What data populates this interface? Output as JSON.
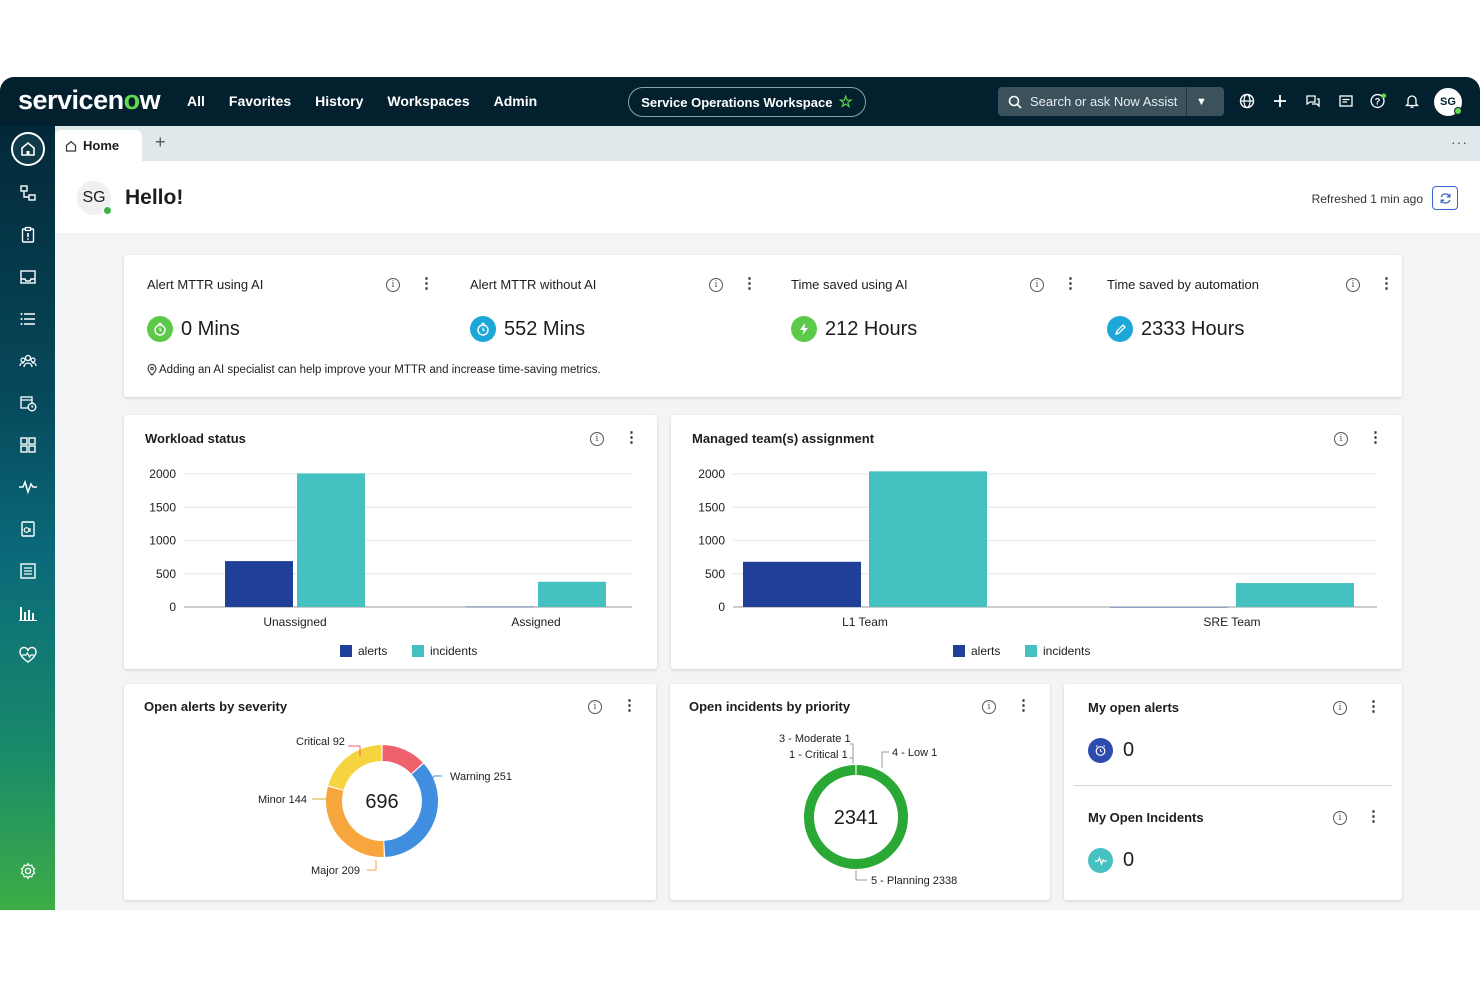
{
  "topnav": {
    "logo_pre": "servicen",
    "logo_o": "o",
    "logo_post": "w",
    "menu": [
      "All",
      "Favorites",
      "History",
      "Workspaces",
      "Admin"
    ],
    "workspace": "Service Operations Workspace",
    "search_placeholder": "Search or ask Now Assist",
    "avatar": "SG"
  },
  "tabs": {
    "home": "Home",
    "add": "+",
    "more": "···"
  },
  "header": {
    "avatar": "SG",
    "title": "Hello!",
    "refreshed": "Refreshed 1 min ago"
  },
  "metrics": {
    "items": [
      {
        "label": "Alert MTTR using AI",
        "value": "0 Mins",
        "color": "#5dc94a",
        "icon": "stopwatch-icon"
      },
      {
        "label": "Alert MTTR without AI",
        "value": "552 Mins",
        "color": "#1ca7d8",
        "icon": "stopwatch-icon"
      },
      {
        "label": "Time saved using AI",
        "value": "212 Hours",
        "color": "#5dc94a",
        "icon": "lightning-icon"
      },
      {
        "label": "Time saved by automation",
        "value": "2333 Hours",
        "color": "#1ca7d8",
        "icon": "pencil-icon"
      }
    ],
    "tip": "Adding an AI specialist can help improve your MTTR and increase time-saving metrics."
  },
  "workload": {
    "title": "Workload status",
    "chart_data": {
      "type": "bar",
      "categories": [
        "Unassigned",
        "Assigned"
      ],
      "series": [
        {
          "name": "alerts",
          "values": [
            690,
            5
          ]
        },
        {
          "name": "incidents",
          "values": [
            2010,
            380
          ]
        }
      ],
      "ylim": [
        0,
        2000
      ],
      "yticks": [
        0,
        500,
        1000,
        1500,
        2000
      ]
    }
  },
  "managed": {
    "title": "Managed team(s) assignment",
    "chart_data": {
      "type": "bar",
      "categories": [
        "L1 Team",
        "SRE Team"
      ],
      "series": [
        {
          "name": "alerts",
          "values": [
            680,
            0
          ]
        },
        {
          "name": "incidents",
          "values": [
            2040,
            360
          ]
        }
      ],
      "ylim": [
        0,
        2000
      ],
      "yticks": [
        0,
        500,
        1000,
        1500,
        2000
      ]
    }
  },
  "colors": {
    "alerts": "#1f3f98",
    "incidents": "#46c1c1"
  },
  "severity": {
    "title": "Open alerts by severity",
    "chart_data": {
      "type": "pie",
      "total": "696",
      "slices": [
        {
          "label": "Critical",
          "value": 92,
          "color": "#f0616e"
        },
        {
          "label": "Warning",
          "value": 251,
          "color": "#3f8ee0"
        },
        {
          "label": "Major",
          "value": 209,
          "color": "#f7a63e"
        },
        {
          "label": "Minor",
          "value": 144,
          "color": "#f5d43f"
        }
      ]
    }
  },
  "priority": {
    "title": "Open incidents by priority",
    "chart_data": {
      "type": "pie",
      "total": "2341",
      "slices": [
        {
          "label": "4 - Low",
          "value": 1,
          "color": "#2aa836"
        },
        {
          "label": "5 - Planning",
          "value": 2338,
          "color": "#2aa836"
        },
        {
          "label": "1 - Critical",
          "value": 1,
          "color": "#2aa836"
        },
        {
          "label": "3 - Moderate",
          "value": 1,
          "color": "#2aa836"
        }
      ]
    }
  },
  "my_alerts": {
    "title": "My open alerts",
    "value": "0"
  },
  "my_incidents": {
    "title": "My Open Incidents",
    "value": "0"
  }
}
